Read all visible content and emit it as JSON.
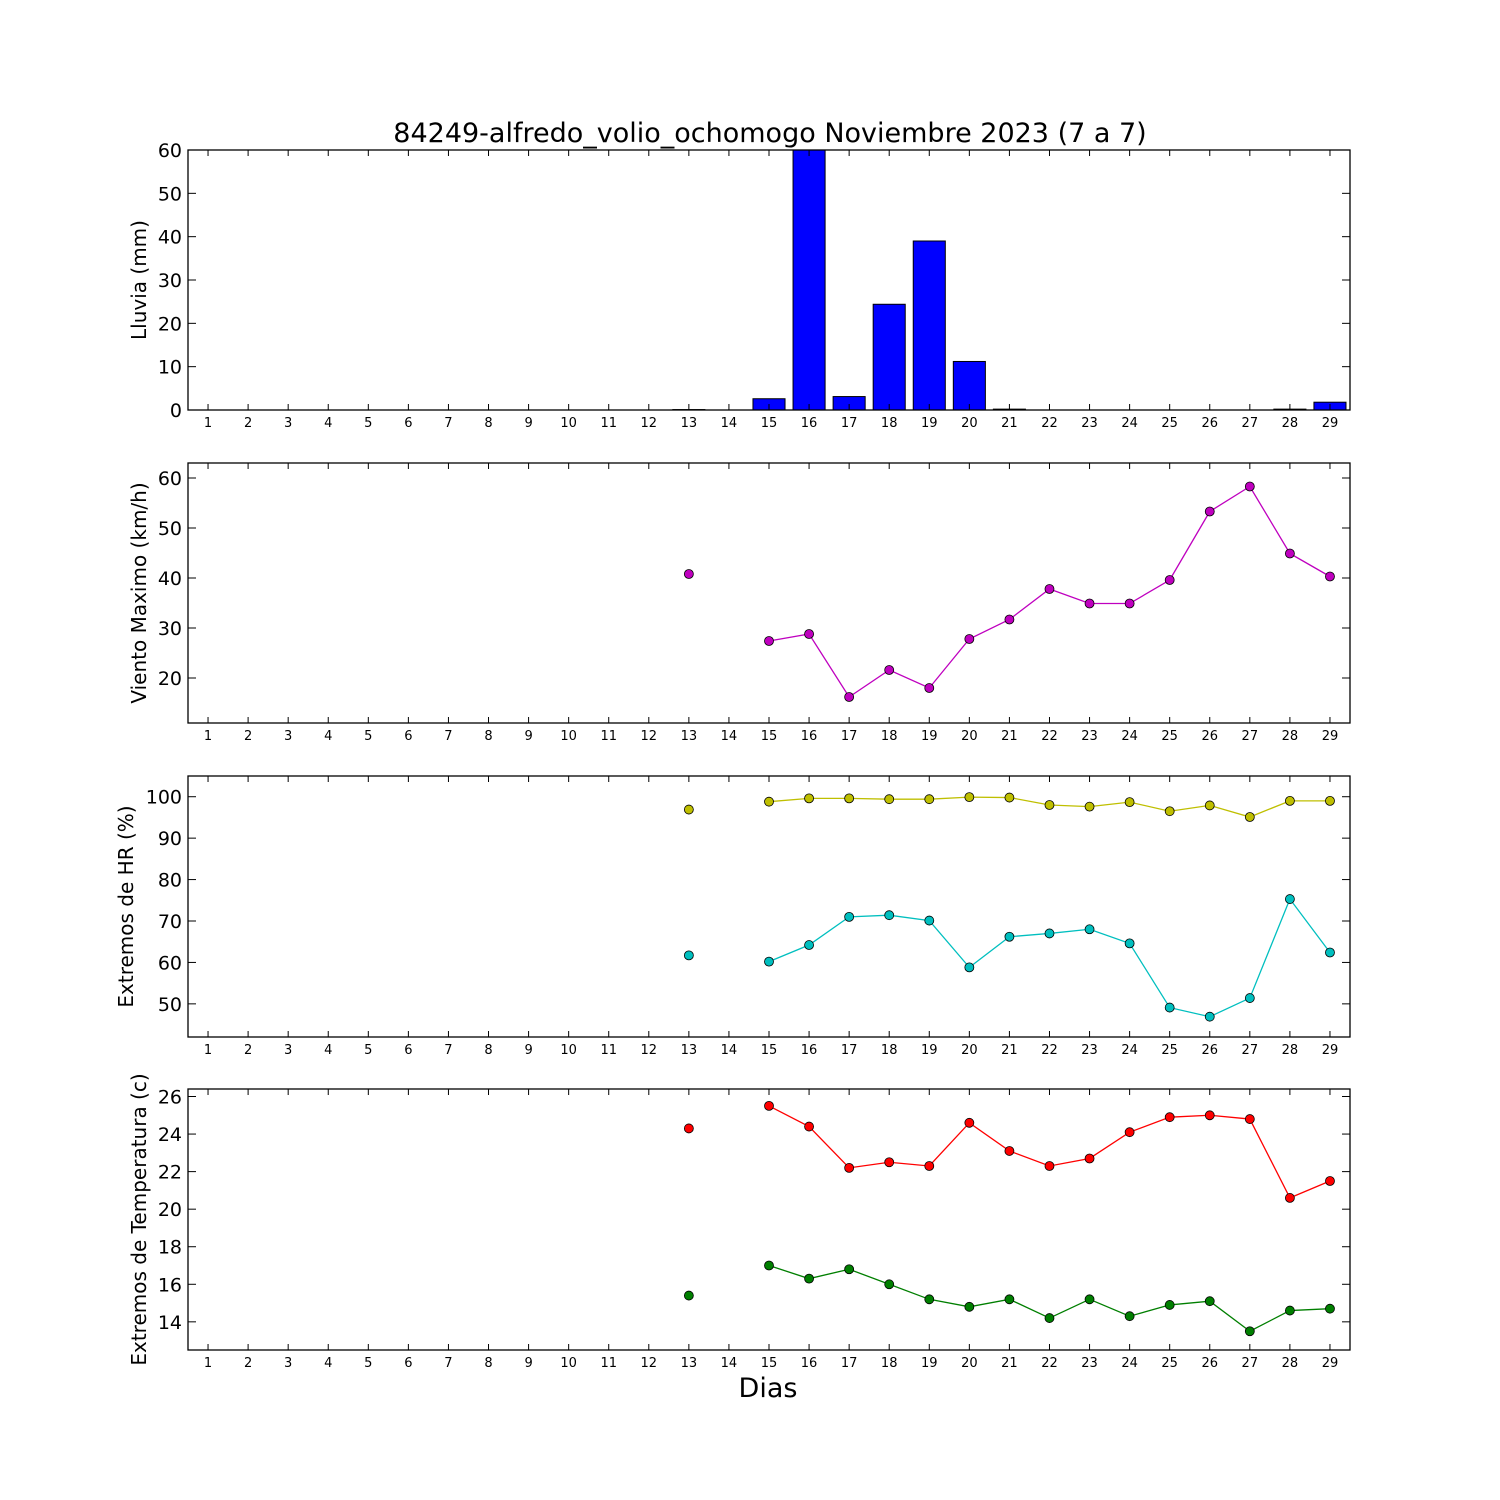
{
  "title": "84249-alfredo_volio_ochomogo Noviembre 2023  (7 a 7)",
  "xlabel": "Dias",
  "chart_data": [
    {
      "type": "bar",
      "ylabel": "Lluvia (mm)",
      "ylim": [
        0,
        60
      ],
      "yticks": [
        0,
        10,
        20,
        30,
        40,
        50,
        60
      ],
      "xticks": [
        1,
        2,
        3,
        4,
        5,
        6,
        7,
        8,
        9,
        10,
        11,
        12,
        13,
        14,
        15,
        16,
        17,
        18,
        19,
        20,
        21,
        22,
        23,
        24,
        25,
        26,
        27,
        28,
        29
      ],
      "series": [
        {
          "color": "#0000ff",
          "x": [
            13,
            15,
            16,
            17,
            18,
            19,
            20,
            21,
            28,
            29
          ],
          "values": [
            0.1,
            2.6,
            60.5,
            3.1,
            24.4,
            39.0,
            11.2,
            0.2,
            0.2,
            1.8
          ]
        }
      ]
    },
    {
      "type": "line",
      "ylabel": "Viento Maximo (km/h)",
      "ylim": [
        11,
        63
      ],
      "yticks": [
        20,
        30,
        40,
        50,
        60
      ],
      "xticks": [
        1,
        2,
        3,
        4,
        5,
        6,
        7,
        8,
        9,
        10,
        11,
        12,
        13,
        14,
        15,
        16,
        17,
        18,
        19,
        20,
        21,
        22,
        23,
        24,
        25,
        26,
        27,
        28,
        29
      ],
      "series": [
        {
          "color": "#bf00bf",
          "x": [
            13,
            14,
            15,
            16,
            17,
            18,
            19,
            20,
            21,
            22,
            23,
            24,
            25,
            26,
            27,
            28,
            29
          ],
          "values": [
            40.8,
            null,
            27.4,
            28.8,
            16.2,
            21.6,
            18.0,
            27.8,
            31.7,
            37.8,
            34.9,
            34.9,
            39.6,
            53.3,
            58.3,
            44.9,
            40.3
          ]
        }
      ]
    },
    {
      "type": "line",
      "ylabel": "Extremos de HR (%)",
      "ylim": [
        42,
        105
      ],
      "yticks": [
        50,
        60,
        70,
        80,
        90,
        100
      ],
      "xticks": [
        1,
        2,
        3,
        4,
        5,
        6,
        7,
        8,
        9,
        10,
        11,
        12,
        13,
        14,
        15,
        16,
        17,
        18,
        19,
        20,
        21,
        22,
        23,
        24,
        25,
        26,
        27,
        28,
        29
      ],
      "series": [
        {
          "color": "#bfbf00",
          "x": [
            13,
            14,
            15,
            16,
            17,
            18,
            19,
            20,
            21,
            22,
            23,
            24,
            25,
            26,
            27,
            28,
            29
          ],
          "values": [
            96.9,
            null,
            98.8,
            99.6,
            99.6,
            99.4,
            99.4,
            99.9,
            99.8,
            98.0,
            97.6,
            98.7,
            96.5,
            97.9,
            95.1,
            99.0,
            99.0
          ]
        },
        {
          "color": "#00bfbf",
          "x": [
            13,
            14,
            15,
            16,
            17,
            18,
            19,
            20,
            21,
            22,
            23,
            24,
            25,
            26,
            27,
            28,
            29
          ],
          "values": [
            61.7,
            null,
            60.2,
            64.2,
            71.0,
            71.4,
            70.1,
            58.8,
            66.2,
            67.0,
            68.0,
            64.6,
            49.1,
            46.9,
            51.4,
            75.3,
            62.4
          ]
        }
      ]
    },
    {
      "type": "line",
      "ylabel": "Extremos de Temperatura (c)",
      "ylim": [
        12.5,
        26.4
      ],
      "yticks": [
        14,
        16,
        18,
        20,
        22,
        24,
        26
      ],
      "xticks": [
        1,
        2,
        3,
        4,
        5,
        6,
        7,
        8,
        9,
        10,
        11,
        12,
        13,
        14,
        15,
        16,
        17,
        18,
        19,
        20,
        21,
        22,
        23,
        24,
        25,
        26,
        27,
        28,
        29
      ],
      "series": [
        {
          "color": "#ff0000",
          "x": [
            13,
            14,
            15,
            16,
            17,
            18,
            19,
            20,
            21,
            22,
            23,
            24,
            25,
            26,
            27,
            28,
            29
          ],
          "values": [
            24.3,
            null,
            25.5,
            24.4,
            22.2,
            22.5,
            22.3,
            24.6,
            23.1,
            22.3,
            22.7,
            24.1,
            24.9,
            25.0,
            24.8,
            20.6,
            21.5
          ]
        },
        {
          "color": "#007f00",
          "x": [
            13,
            14,
            15,
            16,
            17,
            18,
            19,
            20,
            21,
            22,
            23,
            24,
            25,
            26,
            27,
            28,
            29
          ],
          "values": [
            15.4,
            null,
            17.0,
            16.3,
            16.8,
            16.0,
            15.2,
            14.8,
            15.2,
            14.2,
            15.2,
            14.3,
            14.9,
            15.1,
            13.5,
            14.6,
            14.7
          ]
        }
      ]
    }
  ]
}
